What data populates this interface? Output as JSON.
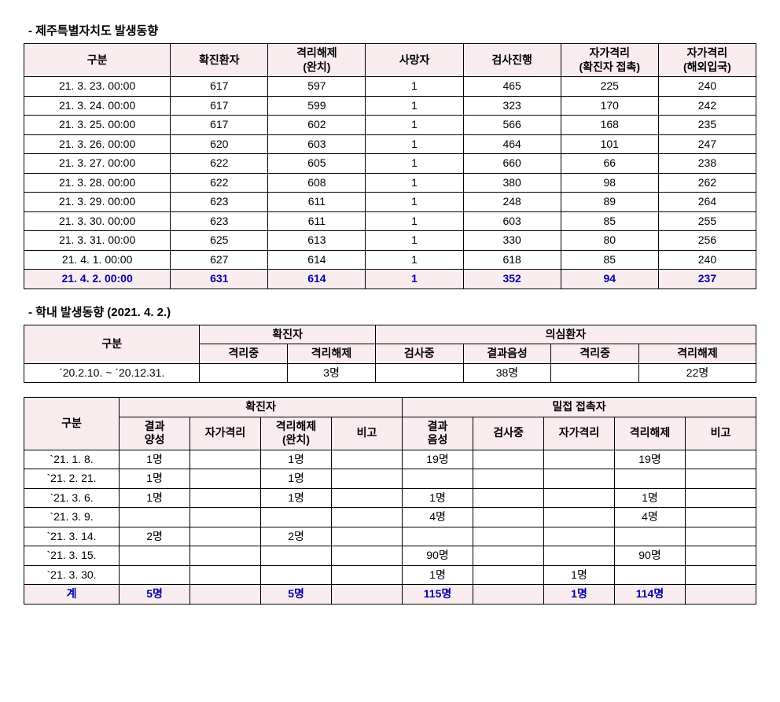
{
  "section1": {
    "title": "- 제주특별자치도 발생동향",
    "headers": [
      "구분",
      "확진환자",
      "격리해제\n(완치)",
      "사망자",
      "검사진행",
      "자가격리\n(확진자 접촉)",
      "자가격리\n(해외입국)"
    ],
    "rows": [
      [
        "21. 3. 23. 00:00",
        "617",
        "597",
        "1",
        "465",
        "225",
        "240"
      ],
      [
        "21. 3. 24. 00:00",
        "617",
        "599",
        "1",
        "323",
        "170",
        "242"
      ],
      [
        "21. 3. 25. 00:00",
        "617",
        "602",
        "1",
        "566",
        "168",
        "235"
      ],
      [
        "21. 3. 26. 00:00",
        "620",
        "603",
        "1",
        "464",
        "101",
        "247"
      ],
      [
        "21. 3. 27. 00:00",
        "622",
        "605",
        "1",
        "660",
        "66",
        "238"
      ],
      [
        "21. 3. 28. 00:00",
        "622",
        "608",
        "1",
        "380",
        "98",
        "262"
      ],
      [
        "21. 3. 29. 00:00",
        "623",
        "611",
        "1",
        "248",
        "89",
        "264"
      ],
      [
        "21. 3. 30. 00:00",
        "623",
        "611",
        "1",
        "603",
        "85",
        "255"
      ],
      [
        "21. 3. 31. 00:00",
        "625",
        "613",
        "1",
        "330",
        "80",
        "256"
      ],
      [
        "21. 4.  1. 00:00",
        "627",
        "614",
        "1",
        "618",
        "85",
        "240"
      ]
    ],
    "totals": [
      "21. 4.  2. 00:00",
      "631",
      "614",
      "1",
      "352",
      "94",
      "237"
    ]
  },
  "section2": {
    "title": "- 학내 발생동향 (2021. 4. 2.)",
    "h_gubun": "구분",
    "h_conf": "확진자",
    "h_susp": "의심환자",
    "sub": [
      "격리중",
      "격리해제",
      "검사중",
      "결과음성",
      "격리중",
      "격리해제"
    ],
    "row": [
      "`20.2.10. ~ `20.12.31.",
      "",
      "3명",
      "",
      "38명",
      "",
      "22명"
    ]
  },
  "section3": {
    "h_gubun": "구분",
    "h_conf": "확진자",
    "h_contact": "밀접 접촉자",
    "sub_conf": [
      "결과\n양성",
      "자가격리",
      "격리해제\n(완치)",
      "비고"
    ],
    "sub_contact": [
      "결과\n음성",
      "검사중",
      "자가격리",
      "격리해제",
      "비고"
    ],
    "rows": [
      [
        "`21.  1.  8.",
        "1명",
        "",
        "1명",
        "",
        "19명",
        "",
        "",
        "19명",
        ""
      ],
      [
        "`21.  2. 21.",
        "1명",
        "",
        "1명",
        "",
        "",
        "",
        "",
        "",
        ""
      ],
      [
        "`21.  3.  6.",
        "1명",
        "",
        "1명",
        "",
        "1명",
        "",
        "",
        "1명",
        ""
      ],
      [
        "`21.  3.  9.",
        "",
        "",
        "",
        "",
        "4명",
        "",
        "",
        "4명",
        ""
      ],
      [
        "`21.  3. 14.",
        "2명",
        "",
        "2명",
        "",
        "",
        "",
        "",
        "",
        ""
      ],
      [
        "`21.  3. 15.",
        "",
        "",
        "",
        "",
        "90명",
        "",
        "",
        "90명",
        ""
      ],
      [
        "`21.  3. 30.",
        "",
        "",
        "",
        "",
        "1명",
        "",
        "1명",
        "",
        ""
      ]
    ],
    "totals": [
      "계",
      "5명",
      "",
      "5명",
      "",
      "115명",
      "",
      "1명",
      "114명",
      ""
    ]
  }
}
